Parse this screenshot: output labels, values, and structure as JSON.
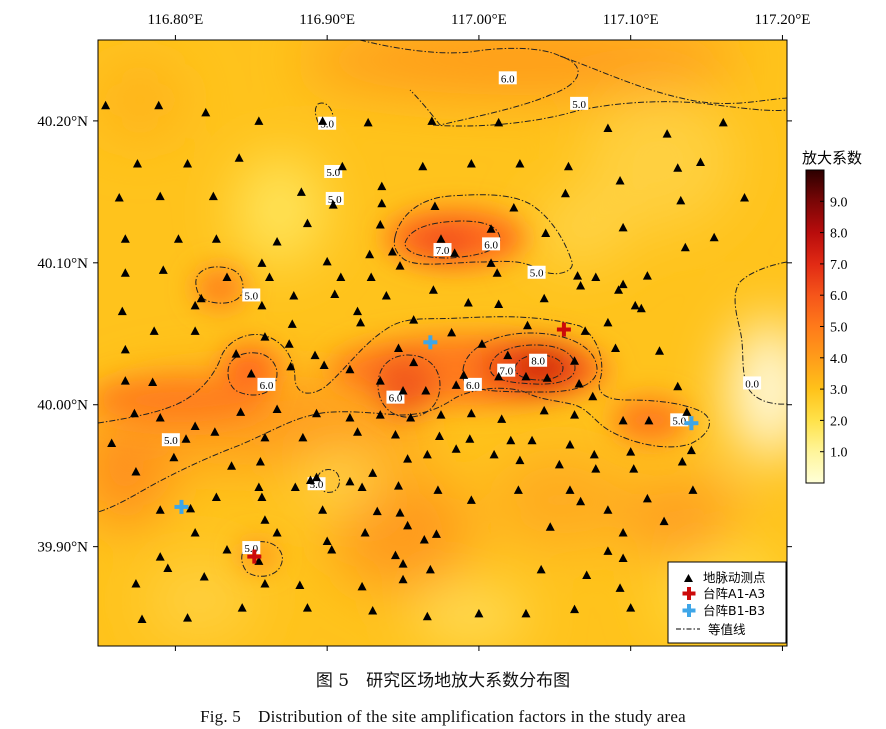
{
  "map": {
    "x_ticks": [
      "116.80°E",
      "116.90°E",
      "117.00°E",
      "117.10°E",
      "117.20°E"
    ],
    "x_tick_values": [
      116.8,
      116.9,
      117.0,
      117.1,
      117.2
    ],
    "y_ticks": [
      "40.20°N",
      "40.10°N",
      "40.00°N",
      "39.90°N"
    ],
    "y_tick_values": [
      40.2,
      40.1,
      40.0,
      39.9
    ],
    "lon_range": [
      116.749,
      117.203
    ],
    "lat_range": [
      39.83,
      40.257
    ]
  },
  "colorbar": {
    "title": "放大系数",
    "labels": [
      "1.0",
      "2.0",
      "3.0",
      "4.0",
      "5.0",
      "6.0",
      "7.0",
      "8.0",
      "9.0"
    ],
    "values": [
      1,
      2,
      3,
      4,
      5,
      6,
      7,
      8,
      9
    ],
    "range": [
      0,
      10
    ],
    "colors": [
      "#ffffd8",
      "#fff59a",
      "#ffe24a",
      "#ffc21a",
      "#ff9c1a",
      "#ff7a1a",
      "#f5551a",
      "#e12a14",
      "#b80c0c",
      "#7a0606",
      "#2c0000"
    ]
  },
  "contours": [
    {
      "label": "6.0",
      "lon": 117.019,
      "lat": 40.23
    },
    {
      "label": "5.0",
      "lon": 117.066,
      "lat": 40.212
    },
    {
      "label": "5.0",
      "lon": 116.9,
      "lat": 40.198
    },
    {
      "label": "5.0",
      "lon": 116.904,
      "lat": 40.164
    },
    {
      "label": "5.0",
      "lon": 116.905,
      "lat": 40.145
    },
    {
      "label": "7.0",
      "lon": 116.976,
      "lat": 40.109
    },
    {
      "label": "6.0",
      "lon": 117.008,
      "lat": 40.113
    },
    {
      "label": "5.0",
      "lon": 117.038,
      "lat": 40.093
    },
    {
      "label": "5.0",
      "lon": 116.85,
      "lat": 40.077
    },
    {
      "label": "8.0",
      "lon": 117.039,
      "lat": 40.031
    },
    {
      "label": "7.0",
      "lon": 117.018,
      "lat": 40.024
    },
    {
      "label": "6.0",
      "lon": 116.86,
      "lat": 40.014
    },
    {
      "label": "6.0",
      "lon": 116.996,
      "lat": 40.014
    },
    {
      "label": "6.0",
      "lon": 116.945,
      "lat": 40.005
    },
    {
      "label": "0.0",
      "lon": 117.18,
      "lat": 40.015
    },
    {
      "label": "5.0",
      "lon": 117.132,
      "lat": 39.989
    },
    {
      "label": "5.0",
      "lon": 116.797,
      "lat": 39.975
    },
    {
      "label": "5.0",
      "lon": 116.893,
      "lat": 39.944
    },
    {
      "label": "5.0",
      "lon": 116.85,
      "lat": 39.899
    }
  ],
  "stations": [
    [
      116.754,
      40.211
    ],
    [
      116.789,
      40.211
    ],
    [
      116.82,
      40.206
    ],
    [
      116.855,
      40.2
    ],
    [
      116.897,
      40.2
    ],
    [
      116.927,
      40.199
    ],
    [
      116.969,
      40.2
    ],
    [
      117.013,
      40.199
    ],
    [
      117.085,
      40.195
    ],
    [
      117.124,
      40.191
    ],
    [
      117.161,
      40.199
    ],
    [
      116.775,
      40.17
    ],
    [
      116.808,
      40.17
    ],
    [
      116.842,
      40.174
    ],
    [
      116.883,
      40.15
    ],
    [
      116.91,
      40.168
    ],
    [
      116.936,
      40.154
    ],
    [
      116.963,
      40.168
    ],
    [
      116.995,
      40.17
    ],
    [
      117.027,
      40.17
    ],
    [
      117.059,
      40.168
    ],
    [
      117.093,
      40.158
    ],
    [
      117.131,
      40.167
    ],
    [
      117.146,
      40.171
    ],
    [
      116.763,
      40.146
    ],
    [
      116.79,
      40.147
    ],
    [
      116.825,
      40.147
    ],
    [
      116.904,
      40.141
    ],
    [
      116.936,
      40.142
    ],
    [
      116.971,
      40.14
    ],
    [
      117.023,
      40.139
    ],
    [
      117.057,
      40.149
    ],
    [
      117.133,
      40.144
    ],
    [
      117.175,
      40.146
    ],
    [
      116.767,
      40.117
    ],
    [
      116.802,
      40.117
    ],
    [
      116.827,
      40.117
    ],
    [
      116.867,
      40.115
    ],
    [
      116.887,
      40.128
    ],
    [
      116.935,
      40.127
    ],
    [
      116.975,
      40.117
    ],
    [
      117.008,
      40.124
    ],
    [
      117.044,
      40.121
    ],
    [
      117.095,
      40.125
    ],
    [
      117.155,
      40.118
    ],
    [
      117.136,
      40.111
    ],
    [
      116.792,
      40.095
    ],
    [
      116.834,
      40.09
    ],
    [
      116.857,
      40.1
    ],
    [
      116.9,
      40.101
    ],
    [
      116.928,
      40.106
    ],
    [
      116.943,
      40.108
    ],
    [
      116.984,
      40.107
    ],
    [
      117.008,
      40.1
    ],
    [
      116.767,
      40.093
    ],
    [
      116.862,
      40.09
    ],
    [
      116.909,
      40.09
    ],
    [
      116.929,
      40.09
    ],
    [
      116.948,
      40.098
    ],
    [
      116.97,
      40.081
    ],
    [
      117.012,
      40.093
    ],
    [
      117.065,
      40.091
    ],
    [
      117.077,
      40.09
    ],
    [
      117.095,
      40.085
    ],
    [
      117.111,
      40.091
    ],
    [
      116.813,
      40.07
    ],
    [
      116.857,
      40.07
    ],
    [
      116.878,
      40.077
    ],
    [
      116.905,
      40.078
    ],
    [
      116.92,
      40.066
    ],
    [
      116.939,
      40.077
    ],
    [
      116.993,
      40.072
    ],
    [
      117.013,
      40.071
    ],
    [
      117.043,
      40.075
    ],
    [
      117.067,
      40.084
    ],
    [
      117.092,
      40.081
    ],
    [
      117.107,
      40.068
    ],
    [
      116.817,
      40.075
    ],
    [
      116.765,
      40.066
    ],
    [
      116.786,
      40.052
    ],
    [
      116.813,
      40.052
    ],
    [
      116.859,
      40.048
    ],
    [
      116.877,
      40.057
    ],
    [
      116.922,
      40.058
    ],
    [
      116.957,
      40.06
    ],
    [
      116.982,
      40.051
    ],
    [
      117.032,
      40.056
    ],
    [
      117.07,
      40.052
    ],
    [
      117.085,
      40.058
    ],
    [
      117.103,
      40.07
    ],
    [
      116.767,
      40.039
    ],
    [
      116.84,
      40.036
    ],
    [
      116.875,
      40.043
    ],
    [
      116.892,
      40.035
    ],
    [
      116.947,
      40.04
    ],
    [
      116.957,
      40.03
    ],
    [
      117.002,
      40.043
    ],
    [
      117.019,
      40.035
    ],
    [
      117.063,
      40.031
    ],
    [
      117.09,
      40.04
    ],
    [
      117.119,
      40.038
    ],
    [
      116.767,
      40.017
    ],
    [
      116.785,
      40.016
    ],
    [
      116.85,
      40.022
    ],
    [
      116.876,
      40.027
    ],
    [
      116.898,
      40.028
    ],
    [
      116.915,
      40.025
    ],
    [
      116.935,
      40.017
    ],
    [
      116.95,
      40.01
    ],
    [
      116.965,
      40.01
    ],
    [
      116.985,
      40.014
    ],
    [
      116.99,
      40.021
    ],
    [
      117.013,
      40.02
    ],
    [
      117.031,
      40.02
    ],
    [
      117.045,
      40.019
    ],
    [
      117.066,
      40.015
    ],
    [
      117.075,
      40.006
    ],
    [
      117.131,
      40.013
    ],
    [
      116.773,
      39.994
    ],
    [
      116.79,
      39.991
    ],
    [
      116.813,
      39.985
    ],
    [
      116.843,
      39.995
    ],
    [
      116.867,
      39.997
    ],
    [
      116.893,
      39.994
    ],
    [
      116.915,
      39.991
    ],
    [
      116.935,
      39.993
    ],
    [
      116.955,
      39.991
    ],
    [
      116.975,
      39.993
    ],
    [
      116.995,
      39.994
    ],
    [
      117.015,
      39.99
    ],
    [
      117.043,
      39.996
    ],
    [
      117.063,
      39.993
    ],
    [
      117.095,
      39.989
    ],
    [
      117.112,
      39.989
    ],
    [
      117.137,
      39.995
    ],
    [
      116.758,
      39.973
    ],
    [
      116.807,
      39.976
    ],
    [
      116.826,
      39.981
    ],
    [
      116.859,
      39.977
    ],
    [
      116.884,
      39.977
    ],
    [
      116.92,
      39.981
    ],
    [
      116.945,
      39.979
    ],
    [
      116.974,
      39.978
    ],
    [
      116.994,
      39.976
    ],
    [
      117.021,
      39.975
    ],
    [
      117.035,
      39.975
    ],
    [
      117.06,
      39.972
    ],
    [
      117.076,
      39.965
    ],
    [
      117.1,
      39.967
    ],
    [
      117.14,
      39.968
    ],
    [
      116.799,
      39.963
    ],
    [
      116.837,
      39.957
    ],
    [
      116.856,
      39.96
    ],
    [
      116.889,
      39.947
    ],
    [
      116.915,
      39.946
    ],
    [
      116.93,
      39.952
    ],
    [
      116.953,
      39.962
    ],
    [
      116.966,
      39.965
    ],
    [
      116.985,
      39.969
    ],
    [
      117.01,
      39.965
    ],
    [
      117.027,
      39.961
    ],
    [
      117.053,
      39.958
    ],
    [
      117.077,
      39.955
    ],
    [
      117.102,
      39.955
    ],
    [
      117.134,
      39.96
    ],
    [
      116.774,
      39.953
    ],
    [
      116.855,
      39.942
    ],
    [
      116.879,
      39.942
    ],
    [
      116.893,
      39.949
    ],
    [
      116.923,
      39.942
    ],
    [
      116.947,
      39.943
    ],
    [
      116.973,
      39.94
    ],
    [
      117.026,
      39.94
    ],
    [
      117.06,
      39.94
    ],
    [
      117.141,
      39.94
    ],
    [
      116.79,
      39.926
    ],
    [
      116.81,
      39.927
    ],
    [
      116.827,
      39.935
    ],
    [
      116.857,
      39.935
    ],
    [
      116.897,
      39.926
    ],
    [
      116.933,
      39.925
    ],
    [
      116.948,
      39.924
    ],
    [
      116.995,
      39.933
    ],
    [
      117.067,
      39.932
    ],
    [
      117.085,
      39.926
    ],
    [
      117.111,
      39.934
    ],
    [
      116.813,
      39.91
    ],
    [
      116.859,
      39.919
    ],
    [
      116.867,
      39.91
    ],
    [
      116.9,
      39.904
    ],
    [
      116.925,
      39.91
    ],
    [
      116.953,
      39.915
    ],
    [
      116.972,
      39.909
    ],
    [
      117.047,
      39.914
    ],
    [
      117.095,
      39.91
    ],
    [
      117.122,
      39.918
    ],
    [
      116.79,
      39.893
    ],
    [
      116.834,
      39.898
    ],
    [
      116.855,
      39.89
    ],
    [
      116.903,
      39.898
    ],
    [
      116.945,
      39.894
    ],
    [
      116.95,
      39.888
    ],
    [
      116.964,
      39.905
    ],
    [
      117.085,
      39.897
    ],
    [
      117.095,
      39.892
    ],
    [
      116.774,
      39.874
    ],
    [
      116.795,
      39.885
    ],
    [
      116.819,
      39.879
    ],
    [
      116.859,
      39.874
    ],
    [
      116.882,
      39.873
    ],
    [
      116.923,
      39.872
    ],
    [
      116.95,
      39.877
    ],
    [
      116.968,
      39.884
    ],
    [
      117.041,
      39.884
    ],
    [
      117.071,
      39.88
    ],
    [
      117.093,
      39.871
    ],
    [
      116.778,
      39.849
    ],
    [
      116.808,
      39.85
    ],
    [
      116.844,
      39.857
    ],
    [
      116.887,
      39.857
    ],
    [
      116.93,
      39.855
    ],
    [
      116.966,
      39.851
    ],
    [
      117.0,
      39.853
    ],
    [
      117.031,
      39.853
    ],
    [
      117.063,
      39.856
    ],
    [
      117.1,
      39.857
    ]
  ],
  "arrays": {
    "a1_a3": [
      [
        117.056,
        40.053
      ],
      [
        116.852,
        39.893
      ]
    ],
    "b1_b3": [
      [
        116.968,
        40.044
      ],
      [
        116.804,
        39.928
      ],
      [
        117.14,
        39.987
      ]
    ]
  },
  "legend": {
    "items": [
      "地脉动测点",
      "台阵A1-A3",
      "台阵B1-B3",
      "等值线"
    ],
    "colors": {
      "station": "#000000",
      "a": "#cc0a0a",
      "b": "#3ea6e8",
      "contour": "#000000"
    }
  },
  "caption": {
    "cn": "图 5　研究区场地放大系数分布图",
    "en": "Fig. 5　Distribution of the site amplification factors in the study area"
  }
}
